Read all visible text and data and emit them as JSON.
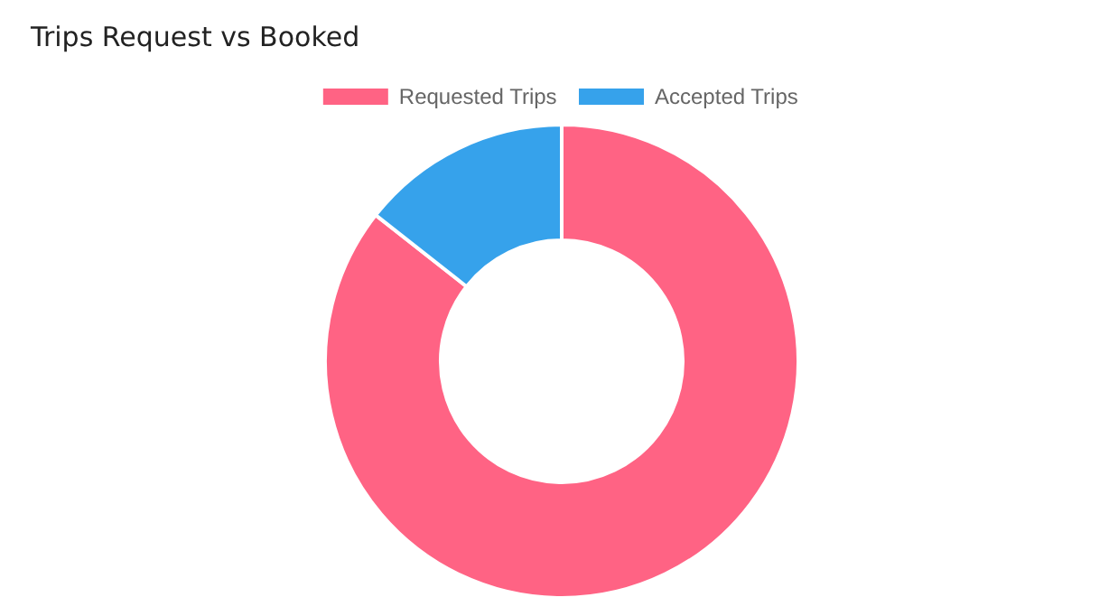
{
  "chart_data": {
    "type": "donut",
    "title": "Trips Request vs Booked",
    "categories": [
      "Requested Trips",
      "Accepted Trips"
    ],
    "values": [
      85.6,
      14.4
    ],
    "colors": [
      "#ff6384",
      "#36a2eb"
    ],
    "legend": "top"
  }
}
